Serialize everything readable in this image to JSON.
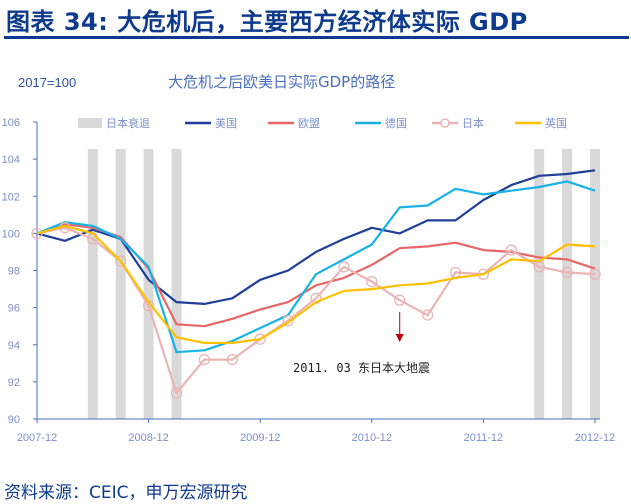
{
  "page_title": "图表 34: 大危机后，主要西方经济体实际 GDP",
  "source": "资料来源：CEIC，申万宏源研究",
  "chart_data": {
    "type": "line",
    "title": "大危机之后欧美日实际GDP的路径",
    "unit_label": "2017=100",
    "ylim": [
      90,
      106
    ],
    "yticks": [
      90,
      92,
      94,
      96,
      98,
      100,
      102,
      104,
      106
    ],
    "xtick_labels": [
      "2007-12",
      "2008-12",
      "2009-12",
      "2010-12",
      "2011-12",
      "2012-12"
    ],
    "xtick_indices": [
      0,
      4,
      8,
      12,
      16,
      20
    ],
    "n_points": 21,
    "recession": {
      "name": "日本衰退",
      "indices": [
        2,
        3,
        4,
        5,
        18,
        19,
        20
      ],
      "color": "#d9d9d9"
    },
    "annotation": {
      "text": "2011. 03  东日本大地震",
      "index": 13
    },
    "series": [
      {
        "name": "美国",
        "color": "#1f3f99",
        "marker": false,
        "values": [
          100,
          99.6,
          100.2,
          99.7,
          97.5,
          96.3,
          96.2,
          96.5,
          97.5,
          98.0,
          99.0,
          99.7,
          100.3,
          100.0,
          100.7,
          100.7,
          101.8,
          102.6,
          103.1,
          103.2,
          103.4
        ]
      },
      {
        "name": "欧盟",
        "color": "#e86666",
        "marker": false,
        "values": [
          100,
          100.5,
          100.3,
          99.8,
          98.1,
          95.1,
          95.0,
          95.4,
          95.9,
          96.3,
          97.2,
          97.6,
          98.3,
          99.2,
          99.3,
          99.5,
          99.1,
          99.0,
          98.7,
          98.6,
          98.1
        ]
      },
      {
        "name": "德国",
        "color": "#17b3e8",
        "marker": false,
        "values": [
          100,
          100.6,
          100.4,
          99.7,
          98.2,
          93.6,
          93.7,
          94.2,
          94.9,
          95.6,
          97.8,
          98.6,
          99.4,
          101.4,
          101.5,
          102.4,
          102.1,
          102.3,
          102.5,
          102.8,
          102.3
        ]
      },
      {
        "name": "日本",
        "color": "#ebb4b4",
        "marker": true,
        "values": [
          100,
          100.3,
          99.7,
          98.5,
          96.1,
          91.4,
          93.2,
          93.2,
          94.3,
          95.3,
          96.5,
          98.2,
          97.4,
          96.4,
          95.6,
          97.9,
          97.8,
          99.1,
          98.2,
          97.9,
          97.8
        ]
      },
      {
        "name": "英国",
        "color": "#ffc000",
        "marker": false,
        "values": [
          100,
          100.4,
          100.0,
          98.5,
          96.3,
          94.4,
          94.1,
          94.1,
          94.3,
          95.2,
          96.3,
          96.9,
          97.0,
          97.2,
          97.3,
          97.6,
          97.8,
          98.6,
          98.5,
          99.4,
          99.3
        ]
      }
    ]
  }
}
